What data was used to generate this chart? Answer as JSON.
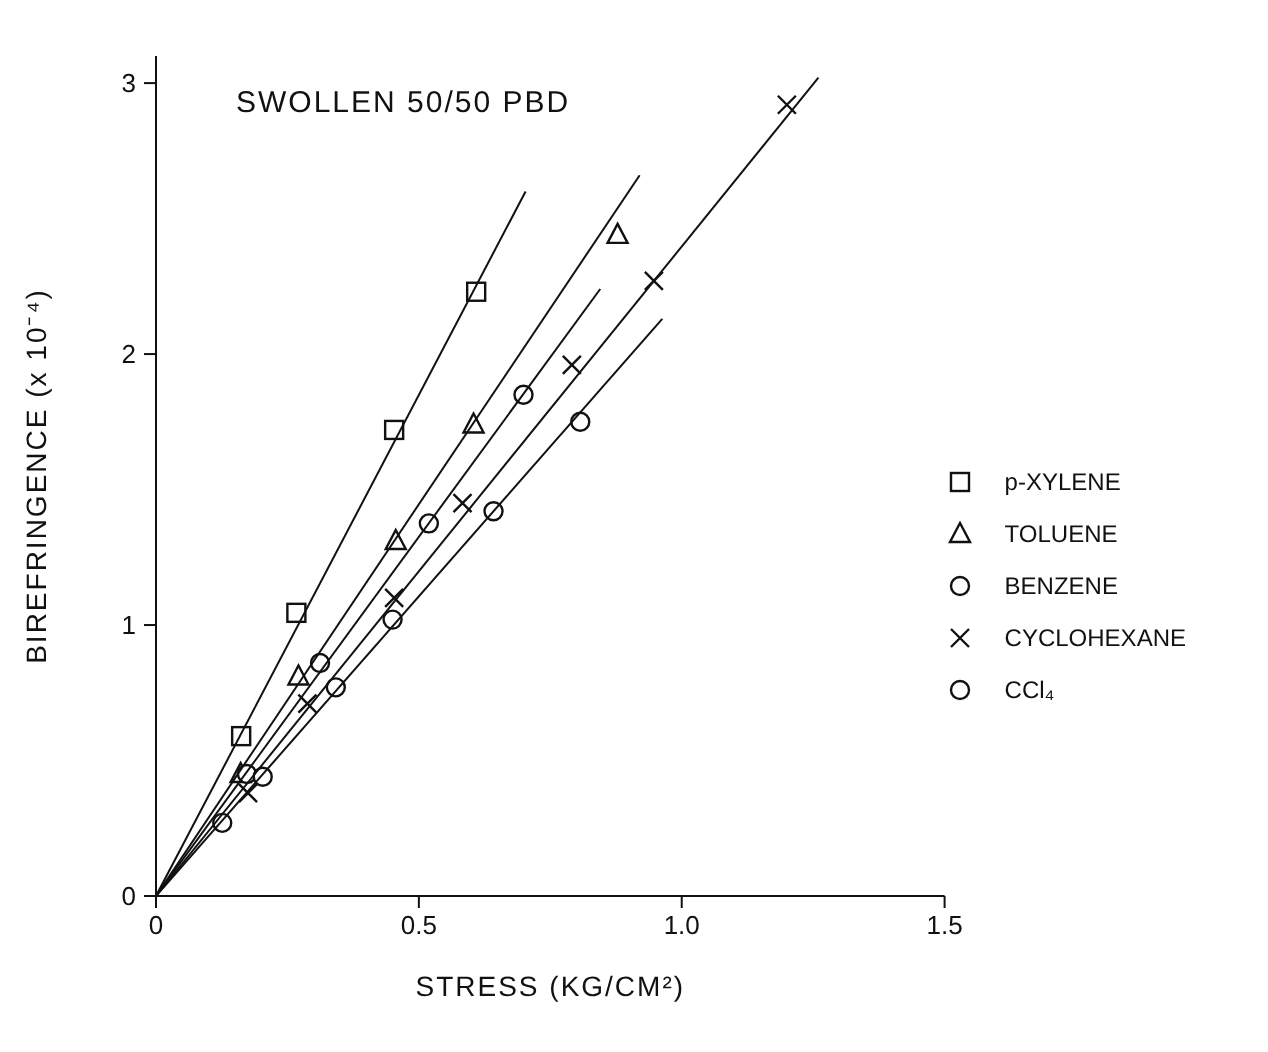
{
  "chart_data": {
    "type": "scatter",
    "title": "SWOLLEN 50/50 PBD",
    "xlabel": "STRESS  (KG/CM²)",
    "ylabel": "BIREFRINGENCE  (x 10⁻⁴)",
    "xlim": [
      0,
      1.5
    ],
    "xticks": [
      0,
      0.5,
      {
        "value": 1,
        "label": "1.0"
      },
      1.5
    ],
    "ylim": [
      0,
      3.1
    ],
    "yticks": [
      0,
      1,
      2,
      3
    ],
    "legend": "right",
    "series": [
      {
        "name": "p-XYLENE",
        "color": "#111111",
        "marker": "square",
        "x": [
          0.162,
          0.267,
          0.453,
          0.609
        ],
        "values": [
          0.59,
          1.045,
          1.72,
          2.23
        ]
      },
      {
        "name": "TOLUENE",
        "color": "#111111",
        "marker": "triangle",
        "x": [
          0.161,
          0.271,
          0.456,
          0.604,
          0.878
        ],
        "values": [
          0.45,
          0.81,
          1.31,
          1.74,
          2.44
        ]
      },
      {
        "name": "BENZENE",
        "color": "#111111",
        "marker": "circle",
        "x": [
          0.173,
          0.312,
          0.519,
          0.699
        ],
        "values": [
          0.45,
          0.86,
          1.375,
          1.85
        ]
      },
      {
        "name": "CYCLOHEXANE",
        "color": "#111111",
        "marker": "cross",
        "x": [
          0.175,
          0.288,
          0.453,
          0.583,
          0.791,
          0.947,
          1.2
        ],
        "values": [
          0.38,
          0.71,
          1.1,
          1.45,
          1.96,
          2.27,
          2.92
        ]
      },
      {
        "name": "CCl₄",
        "color": "#111111",
        "marker": "circle",
        "x": [
          0.126,
          0.203,
          0.342,
          0.45,
          0.642,
          0.807
        ],
        "values": [
          0.27,
          0.44,
          0.77,
          1.02,
          1.42,
          1.75
        ]
      },
      {
        "type": "line",
        "color": "#111111",
        "marker": "none",
        "x": [
          0,
          0.703
        ],
        "values": [
          0,
          2.6
        ]
      },
      {
        "type": "line",
        "color": "#111111",
        "marker": "none",
        "x": [
          0,
          0.92
        ],
        "values": [
          0,
          2.66
        ]
      },
      {
        "type": "line",
        "color": "#111111",
        "marker": "none",
        "x": [
          0,
          0.845
        ],
        "values": [
          0,
          2.24
        ]
      },
      {
        "type": "line",
        "color": "#111111",
        "marker": "none",
        "x": [
          0,
          1.26
        ],
        "values": [
          0,
          3.02
        ]
      },
      {
        "type": "line",
        "color": "#111111",
        "marker": "none",
        "x": [
          0,
          0.963
        ],
        "values": [
          0,
          2.13
        ]
      }
    ]
  }
}
